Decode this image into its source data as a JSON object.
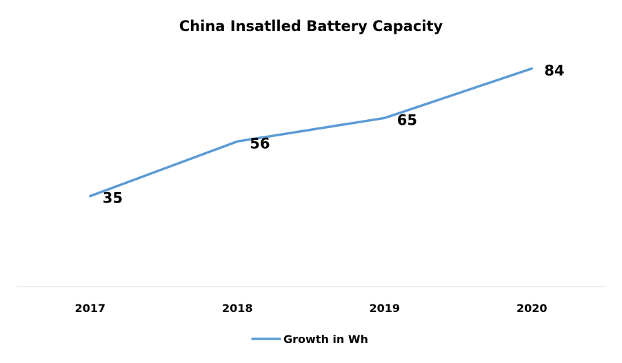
{
  "chart_data": {
    "type": "line",
    "title": "China Insatlled Battery Capacity",
    "xlabel": "",
    "ylabel": "",
    "categories": [
      "2017",
      "2018",
      "2019",
      "2020"
    ],
    "series": [
      {
        "name": "Growth in Wh",
        "values": [
          35,
          56,
          65,
          84
        ],
        "color": "#5B9BD5"
      }
    ],
    "data_labels": [
      "35",
      "56",
      "65",
      "84"
    ],
    "ylim": [
      0,
      100
    ],
    "grid": false,
    "legend": "bottom",
    "axis_color": "#D9D9D9"
  }
}
